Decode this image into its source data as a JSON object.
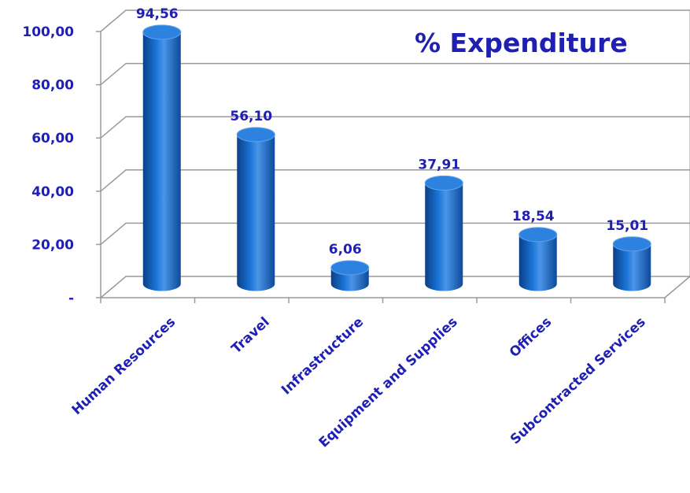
{
  "chart_data": {
    "type": "bar",
    "title": "% Expenditure",
    "categories": [
      "Human Resources",
      "Travel",
      "Infrastructure",
      "Equipment and Supplies",
      "Offices",
      "Subcontracted Services"
    ],
    "values": [
      94.56,
      56.1,
      6.06,
      37.91,
      18.54,
      15.01
    ],
    "data_labels": [
      "94,56",
      "56,10",
      "6,06",
      "37,91",
      "18,54",
      "15,01"
    ],
    "y_ticks": [
      0,
      20,
      40,
      60,
      80,
      100
    ],
    "y_tick_labels": [
      "-",
      "20,00",
      "40,00",
      "60,00",
      "80,00",
      "100,00"
    ],
    "ylim": [
      0,
      100
    ],
    "grid": true,
    "legend": "none",
    "colors": {
      "bar": "#1668c8",
      "bar_dark": "#0b3f86",
      "bar_light": "#6aa9f0",
      "text": "#1f1fb4",
      "grid": "#9a9a9a"
    }
  }
}
